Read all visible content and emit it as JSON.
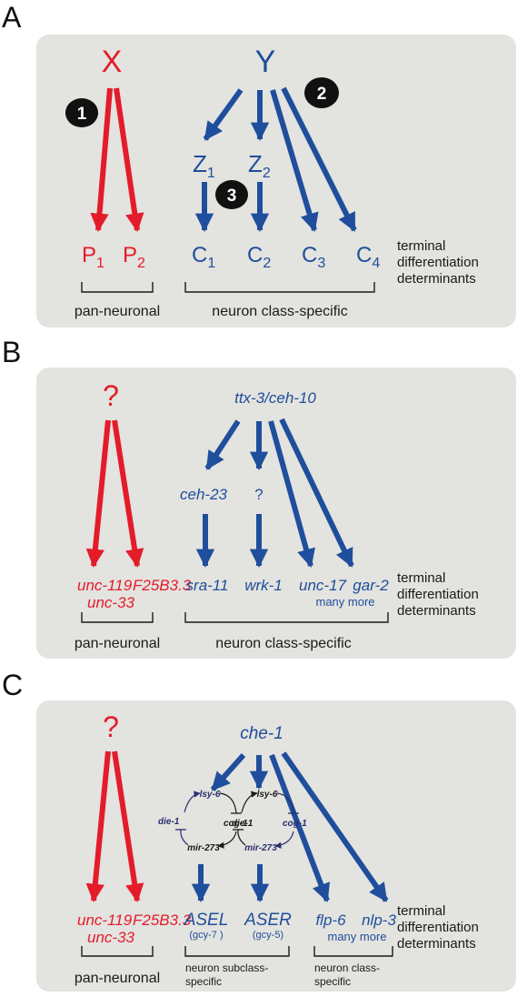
{
  "panel_a": {
    "letter": "A",
    "top_left": "X",
    "top_right": "Y",
    "badge_1": "1",
    "badge_2": "2",
    "badge_3": "3",
    "z1_base": "Z",
    "z1_sub": "1",
    "z2_base": "Z",
    "z2_sub": "2",
    "p1_base": "P",
    "p1_sub": "1",
    "p2_base": "P",
    "p2_sub": "2",
    "c1_base": "C",
    "c1_sub": "1",
    "c2_base": "C",
    "c2_sub": "2",
    "c3_base": "C",
    "c3_sub": "3",
    "c4_base": "C",
    "c4_sub": "4",
    "terminal": [
      "terminal",
      "differentiation",
      "determinants"
    ],
    "pan_label": "pan-neuronal",
    "class_label": "neuron class-specific"
  },
  "panel_b": {
    "letter": "B",
    "question": "?",
    "top_right": "ttx-3/ceh-10",
    "mid_left": "ceh-23",
    "mid_q": "?",
    "gene_unc119": "unc-119",
    "gene_f25b": "F25B3.3",
    "gene_unc33": "unc-33",
    "gene_sra": "sra-11",
    "gene_wrk": "wrk-1",
    "gene_unc17": "unc-17",
    "gene_gar": "gar-2",
    "many_more": "many more",
    "terminal": [
      "terminal",
      "differentiation",
      "determinants"
    ],
    "pan_label": "pan-neuronal",
    "class_label": "neuron class-specific"
  },
  "panel_c": {
    "letter": "C",
    "question": "?",
    "top_right": "che-1",
    "loop_left": {
      "lsy": "lsy-6",
      "die": "die-1",
      "cog": "cog-1",
      "mir": "mir-273"
    },
    "loop_right": {
      "lsy": "lsy-6",
      "die": "die-1",
      "cog": "cog-1",
      "mir": "mir-273"
    },
    "gene_unc119": "unc-119",
    "gene_f25b": "F25B3.3",
    "gene_unc33": "unc-33",
    "asel": "ASEL",
    "asel_sub": "(gcy-7 )",
    "aser": "ASER",
    "aser_sub": "(gcy-5)",
    "gene_flp": "flp-6",
    "gene_nlp": "nlp-3",
    "many_more": "many more",
    "terminal": [
      "terminal",
      "differentiation",
      "determinants"
    ],
    "pan_label": "pan-neuronal",
    "subclass_label": [
      "neuron subclass-",
      "specific"
    ],
    "class_label": [
      "neuron class-",
      "specific"
    ]
  },
  "colors": {
    "red": "#e41c2a",
    "blue": "#1f4e9c",
    "panel": "#e3e3df",
    "badge": "#111111"
  }
}
